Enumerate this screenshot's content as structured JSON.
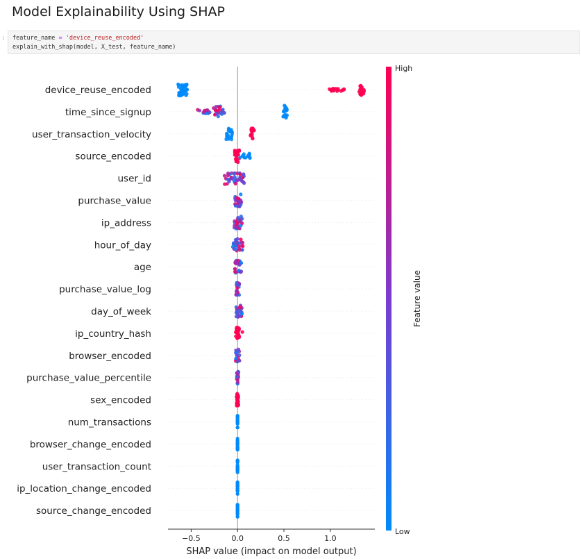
{
  "heading": "Model Explainability Using SHAP",
  "cell": {
    "prompt": ":",
    "line1": {
      "var": "feature_name",
      "op": "=",
      "str": "'device_reuse_encoded'"
    },
    "line2": "explain_with_shap(model, X_test, feature_name)"
  },
  "colors": {
    "low": "#008afb",
    "high": "#ff0052",
    "mid": "#7a3ccf"
  },
  "chart_data": {
    "type": "scatter",
    "subtype": "shap-beeswarm",
    "title": "",
    "xlabel": "SHAP value (impact on model output)",
    "ylabel": "",
    "xlim": [
      -0.75,
      1.48
    ],
    "xticks": [
      "−0.5",
      "0.0",
      "0.5",
      "1.0"
    ],
    "xtick_values": [
      -0.5,
      0.0,
      0.5,
      1.0
    ],
    "grid": false,
    "colorbar": {
      "label": "Feature value",
      "high": "High",
      "low": "Low"
    },
    "features": [
      {
        "name": "device_reuse_encoded",
        "clusters": [
          {
            "lo": -0.64,
            "hi": -0.54,
            "n": 40,
            "color": "low",
            "spread": 1.0
          },
          {
            "lo": 0.97,
            "hi": 1.15,
            "n": 16,
            "color": "high",
            "spread": 0.25
          },
          {
            "lo": 1.31,
            "hi": 1.37,
            "n": 22,
            "color": "high",
            "spread": 0.9
          }
        ]
      },
      {
        "name": "time_since_signup",
        "clusters": [
          {
            "lo": -0.43,
            "hi": -0.3,
            "n": 14,
            "color": "mixed",
            "spread": 0.35
          },
          {
            "lo": -0.26,
            "hi": -0.12,
            "n": 24,
            "color": "mixed",
            "spread": 0.9
          },
          {
            "lo": 0.49,
            "hi": 0.55,
            "n": 18,
            "color": "low",
            "spread": 1.0
          }
        ]
      },
      {
        "name": "user_transaction_velocity",
        "clusters": [
          {
            "lo": -0.13,
            "hi": -0.05,
            "n": 22,
            "color": "low",
            "spread": 0.9
          },
          {
            "lo": 0.14,
            "hi": 0.18,
            "n": 16,
            "color": "high",
            "spread": 0.9
          }
        ]
      },
      {
        "name": "source_encoded",
        "clusters": [
          {
            "lo": -0.03,
            "hi": 0.02,
            "n": 22,
            "color": "high",
            "spread": 1.0
          },
          {
            "lo": 0.02,
            "hi": 0.15,
            "n": 12,
            "color": "low",
            "spread": 0.4
          }
        ]
      },
      {
        "name": "user_id",
        "clusters": [
          {
            "lo": -0.15,
            "hi": 0.08,
            "n": 40,
            "color": "mixed",
            "spread": 1.0
          }
        ]
      },
      {
        "name": "purchase_value",
        "clusters": [
          {
            "lo": -0.03,
            "hi": 0.04,
            "n": 28,
            "color": "mixed",
            "spread": 1.0
          }
        ]
      },
      {
        "name": "ip_address",
        "clusters": [
          {
            "lo": -0.04,
            "hi": 0.05,
            "n": 28,
            "color": "mixed",
            "spread": 1.0
          }
        ]
      },
      {
        "name": "hour_of_day",
        "clusters": [
          {
            "lo": -0.06,
            "hi": 0.06,
            "n": 30,
            "color": "mixed",
            "spread": 1.0
          }
        ]
      },
      {
        "name": "age",
        "clusters": [
          {
            "lo": -0.03,
            "hi": 0.04,
            "n": 26,
            "color": "mixed",
            "spread": 1.0
          }
        ]
      },
      {
        "name": "purchase_value_log",
        "clusters": [
          {
            "lo": -0.02,
            "hi": 0.02,
            "n": 22,
            "color": "mixed",
            "spread": 1.0
          }
        ]
      },
      {
        "name": "day_of_week",
        "clusters": [
          {
            "lo": -0.02,
            "hi": 0.05,
            "n": 26,
            "color": "mixed",
            "spread": 1.0
          }
        ]
      },
      {
        "name": "ip_country_hash",
        "clusters": [
          {
            "lo": -0.02,
            "hi": 0.02,
            "n": 22,
            "color": "high",
            "spread": 1.0
          },
          {
            "lo": 0.05,
            "hi": 0.06,
            "n": 1,
            "color": "high",
            "spread": 0.2
          }
        ]
      },
      {
        "name": "browser_encoded",
        "clusters": [
          {
            "lo": -0.02,
            "hi": 0.02,
            "n": 22,
            "color": "mixed",
            "spread": 1.0
          }
        ]
      },
      {
        "name": "purchase_value_percentile",
        "clusters": [
          {
            "lo": -0.01,
            "hi": 0.01,
            "n": 22,
            "color": "mixed",
            "spread": 1.0
          }
        ]
      },
      {
        "name": "sex_encoded",
        "clusters": [
          {
            "lo": -0.01,
            "hi": 0.01,
            "n": 24,
            "color": "high",
            "spread": 1.0
          }
        ]
      },
      {
        "name": "num_transactions",
        "clusters": [
          {
            "lo": 0.0,
            "hi": 0.0,
            "n": 24,
            "color": "low",
            "spread": 1.0
          }
        ]
      },
      {
        "name": "browser_change_encoded",
        "clusters": [
          {
            "lo": 0.0,
            "hi": 0.0,
            "n": 24,
            "color": "low",
            "spread": 1.0
          }
        ]
      },
      {
        "name": "user_transaction_count",
        "clusters": [
          {
            "lo": 0.0,
            "hi": 0.0,
            "n": 24,
            "color": "low",
            "spread": 1.0
          }
        ]
      },
      {
        "name": "ip_location_change_encoded",
        "clusters": [
          {
            "lo": 0.0,
            "hi": 0.0,
            "n": 24,
            "color": "low",
            "spread": 1.0
          }
        ]
      },
      {
        "name": "source_change_encoded",
        "clusters": [
          {
            "lo": 0.0,
            "hi": 0.0,
            "n": 24,
            "color": "low",
            "spread": 1.0
          }
        ]
      }
    ]
  }
}
